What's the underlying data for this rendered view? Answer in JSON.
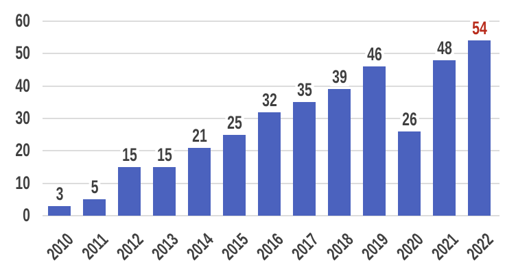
{
  "chart_data": {
    "type": "bar",
    "title": "",
    "xlabel": "",
    "ylabel": "",
    "categories": [
      "2010",
      "2011",
      "2012",
      "2013",
      "2014",
      "2015",
      "2016",
      "2017",
      "2018",
      "2019",
      "2020",
      "2021",
      "2022"
    ],
    "values": [
      3,
      5,
      15,
      15,
      21,
      25,
      32,
      35,
      39,
      46,
      26,
      48,
      54
    ],
    "data_labels_shown": true,
    "highlight_index": 12,
    "highlight_label": "54",
    "ylim": [
      0,
      60
    ],
    "yticks": [
      0,
      10,
      20,
      30,
      40,
      50,
      60
    ],
    "grid": "horizontal",
    "legend": "none",
    "colors": {
      "bar": "#4B62BE",
      "label": "#3F3F3F",
      "axis_text": "#3F3F3F",
      "highlight": "#B82B1B",
      "gridline": "#DCDCDC",
      "background": "#FFFFFF"
    }
  }
}
